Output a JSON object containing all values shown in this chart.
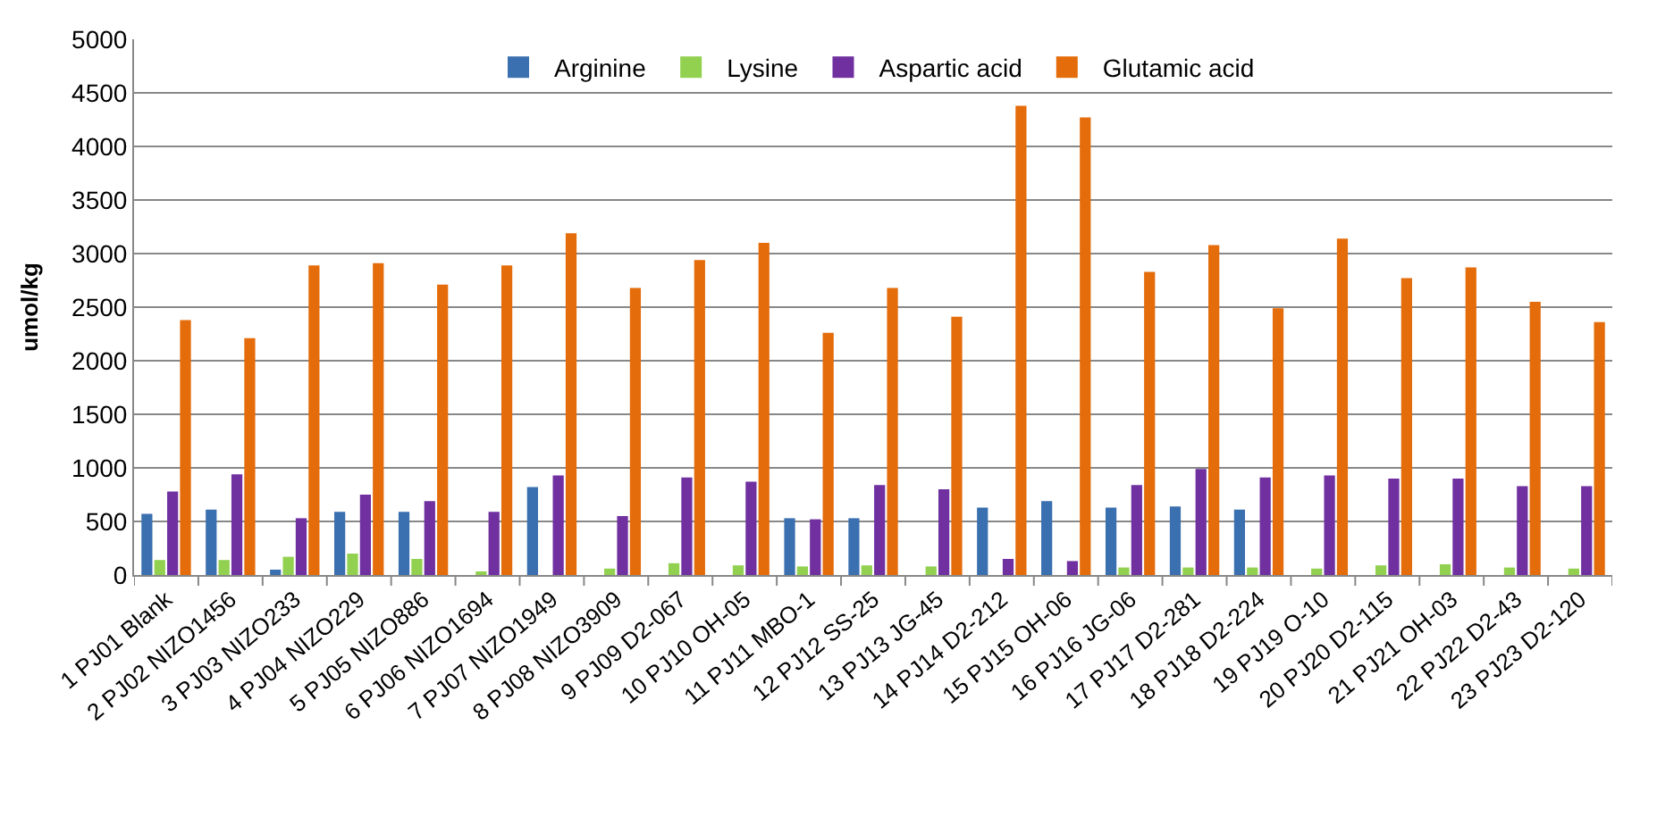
{
  "chart_data": {
    "type": "bar",
    "ylabel": "umol/kg",
    "categories": [
      "1 PJ01 Blank",
      "2 PJ02 NIZO1456",
      "3 PJ03 NIZO233",
      "4 PJ04 NIZO229",
      "5 PJ05 NIZO886",
      "6 PJ06 NIZO1694",
      "7 PJ07 NIZO1949",
      "8 PJ08 NIZO3909",
      "9 PJ09 D2-067",
      "10 PJ10 OH-05",
      "11 PJ11 MBO-1",
      "12 PJ12 SS-25",
      "13 PJ13 JG-45",
      "14 PJ14 D2-212",
      "15 PJ15 OH-06",
      "16 PJ16 JG-06",
      "17 PJ17 D2-281",
      "18 PJ18 D2-224",
      "19 PJ19 O-10",
      "20 PJ20 D2-115",
      "21 PJ21 OH-03",
      "22 PJ22 D2-43",
      "23 PJ23 D2-120"
    ],
    "series": [
      {
        "name": "Arginine",
        "color": "#3a6fb0",
        "values": [
          570,
          610,
          50,
          590,
          590,
          0,
          820,
          0,
          0,
          0,
          530,
          530,
          0,
          630,
          690,
          630,
          640,
          610,
          0,
          0,
          0,
          0,
          0
        ]
      },
      {
        "name": "Lysine",
        "color": "#92d050",
        "values": [
          140,
          140,
          170,
          200,
          150,
          30,
          0,
          60,
          110,
          90,
          80,
          90,
          80,
          0,
          0,
          70,
          70,
          70,
          60,
          90,
          100,
          70,
          60
        ]
      },
      {
        "name": "Aspartic acid",
        "color": "#7030a0",
        "values": [
          780,
          940,
          530,
          750,
          690,
          590,
          930,
          550,
          910,
          870,
          520,
          840,
          800,
          150,
          130,
          840,
          990,
          910,
          930,
          900,
          900,
          830,
          830
        ]
      },
      {
        "name": "Glutamic acid",
        "color": "#e46c0a",
        "values": [
          2380,
          2210,
          2890,
          2910,
          2710,
          2890,
          3190,
          2680,
          2940,
          3100,
          2260,
          2680,
          2410,
          4380,
          4270,
          2830,
          3080,
          2490,
          3140,
          2770,
          2870,
          2550,
          2360
        ]
      }
    ],
    "ylim": [
      0,
      5000
    ],
    "yticks": [
      0,
      500,
      1000,
      1500,
      2000,
      2500,
      3000,
      3500,
      4000,
      4500,
      5000
    ],
    "grid": "y",
    "legend": "top"
  }
}
